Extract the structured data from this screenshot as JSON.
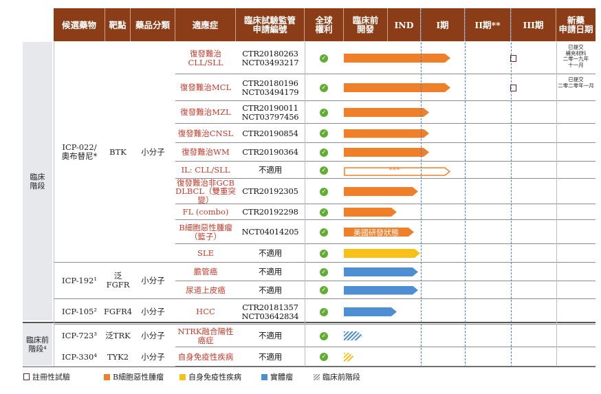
{
  "header": {
    "candidate": "候選藥物",
    "target": "靶點",
    "class": "藥品分類",
    "indication": "適應症",
    "trial_l1": "臨床試驗監管",
    "trial_l2": "申請編號",
    "rights_l1": "全球",
    "rights_l2": "權利",
    "preclin_l1": "臨床前",
    "preclin_l2": "開發",
    "ind": "IND",
    "p1": "I期",
    "p2": "II期**",
    "p3": "III期",
    "nda_l1": "新藥",
    "nda_l2": "申請日期"
  },
  "stages": {
    "clinical_l1": "臨床",
    "clinical_l2": "階段",
    "preclinical_l1": "臨床前",
    "preclinical_l2": "階段⁴"
  },
  "drugs": [
    {
      "name_l1": "ICP-022/",
      "name_l2": "奧布替尼*",
      "target": "BTK",
      "class": "小分子"
    },
    {
      "name_l1": "ICP-192¹",
      "name_l2": "",
      "target": "泛FGFR",
      "class": "小分子"
    },
    {
      "name_l1": "ICP-105²",
      "name_l2": "",
      "target": "FGFR4",
      "class": "小分子"
    },
    {
      "name_l1": "ICP-723³",
      "name_l2": "",
      "target": "泛TRK",
      "class": "小分子"
    },
    {
      "name_l1": "ICP-330⁴",
      "name_l2": "",
      "target": "TYK2",
      "class": "小分子"
    }
  ],
  "rows": [
    {
      "ind_l1": "復發難治CLL/SLL",
      "ind_l2": "",
      "trial_l1": "CTR20180263",
      "trial_l2": "NCT03493217",
      "color": "#f07f2a",
      "progress": 0.5,
      "hollow": false,
      "label": "",
      "hatched": false,
      "registrational": true,
      "nda_l1": "已提交",
      "nda_l2": "補充材料",
      "nda_l3": "二零一九年",
      "nda_l4": "十一月"
    },
    {
      "ind_l1": "復發難治MCL",
      "ind_l2": "",
      "trial_l1": "CTR20180196",
      "trial_l2": "NCT03494179",
      "color": "#f07f2a",
      "progress": 0.5,
      "hollow": false,
      "label": "",
      "hatched": false,
      "registrational": true,
      "nda_l1": "已提交",
      "nda_l2": "二零二零年一月",
      "nda_l3": "",
      "nda_l4": ""
    },
    {
      "ind_l1": "復發難治MZL",
      "ind_l2": "",
      "trial_l1": "CTR20190011",
      "trial_l2": "NCT03797456",
      "color": "#f07f2a",
      "progress": 0.4,
      "hollow": false,
      "label": "",
      "hatched": false,
      "registrational": false
    },
    {
      "ind_l1": "復發難治CNSL",
      "ind_l2": "",
      "trial_l1": "CTR20190854",
      "trial_l2": "",
      "color": "#f07f2a",
      "progress": 0.4,
      "hollow": false,
      "label": "",
      "hatched": false,
      "registrational": false
    },
    {
      "ind_l1": "復發難治WM",
      "ind_l2": "",
      "trial_l1": "CTR20190364",
      "trial_l2": "",
      "color": "#f07f2a",
      "progress": 0.4,
      "hollow": false,
      "label": "",
      "hatched": false,
      "registrational": false
    },
    {
      "ind_l1": "IL: CLL/SLL",
      "ind_l2": "",
      "trial_l1": "不適用",
      "trial_l2": "",
      "color": "#f07f2a",
      "progress": 0.5,
      "hollow": true,
      "label": "***",
      "hatched": false,
      "registrational": false
    },
    {
      "ind_l1": "復發難治非GCB",
      "ind_l2": "DLBCL（雙重突變）",
      "trial_l1": "CTR20192305",
      "trial_l2": "",
      "color": "#f07f2a",
      "progress": 0.35,
      "hollow": false,
      "label": "",
      "hatched": false,
      "registrational": false
    },
    {
      "ind_l1": "FL (combo)",
      "ind_l2": "",
      "trial_l1": "CTR20192298",
      "trial_l2": "",
      "color": "#f07f2a",
      "progress": 0.25,
      "hollow": false,
      "label": "",
      "hatched": false,
      "registrational": false
    },
    {
      "ind_l1": "B細胞惡性腫瘤",
      "ind_l2": "（籃子）",
      "trial_l1": "NCT04014205",
      "trial_l2": "",
      "color": "#f07f2a",
      "progress": 0.33,
      "hollow": false,
      "label": "美國研發狀態",
      "hatched": false,
      "registrational": false
    },
    {
      "ind_l1": "SLE",
      "ind_l2": "",
      "trial_l1": "不適用",
      "trial_l2": "",
      "color": "#f7c11a",
      "progress": 0.36,
      "hollow": false,
      "label": "",
      "hatched": false,
      "registrational": false
    },
    {
      "ind_l1": "膽管癌",
      "ind_l2": "",
      "trial_l1": "不適用",
      "trial_l2": "",
      "color": "#4e8fd4",
      "progress": 0.35,
      "hollow": false,
      "label": "",
      "hatched": false,
      "registrational": false
    },
    {
      "ind_l1": "尿道上皮癌",
      "ind_l2": "",
      "trial_l1": "不適用",
      "trial_l2": "",
      "color": "#4e8fd4",
      "progress": 0.35,
      "hollow": false,
      "label": "",
      "hatched": false,
      "registrational": false
    },
    {
      "ind_l1": "HCC",
      "ind_l2": "",
      "trial_l1": "CTR20181357",
      "trial_l2": "NCT03642834",
      "color": "#4e8fd4",
      "progress": 0.25,
      "hollow": false,
      "label": "",
      "hatched": false,
      "registrational": false
    },
    {
      "ind_l1": "NTRK融合陽性癌症",
      "ind_l2": "",
      "trial_l1": "不適用",
      "trial_l2": "",
      "color": "#4e8fd4",
      "progress": 0.09,
      "hollow": false,
      "label": "",
      "hatched": true,
      "registrational": false
    },
    {
      "ind_l1": "自身免疫性疾病",
      "ind_l2": "",
      "trial_l1": "不適用",
      "trial_l2": "",
      "color": "#f7c11a",
      "progress": 0.05,
      "hollow": false,
      "label": "",
      "hatched": true,
      "registrational": false
    }
  ],
  "legend": {
    "registrational": "註冊性試驗",
    "b_cell": "B細胞惡性腫瘤",
    "autoimmune": "自身免疫性疾病",
    "solid": "實體瘤",
    "preclinical": "臨床前階段"
  },
  "colors": {
    "header": "#8a3d16",
    "b_cell": "#f07f2a",
    "autoimmune": "#f7c11a",
    "solid": "#4e8fd4",
    "check": "#5fae32",
    "indication": "#c23b2b"
  }
}
